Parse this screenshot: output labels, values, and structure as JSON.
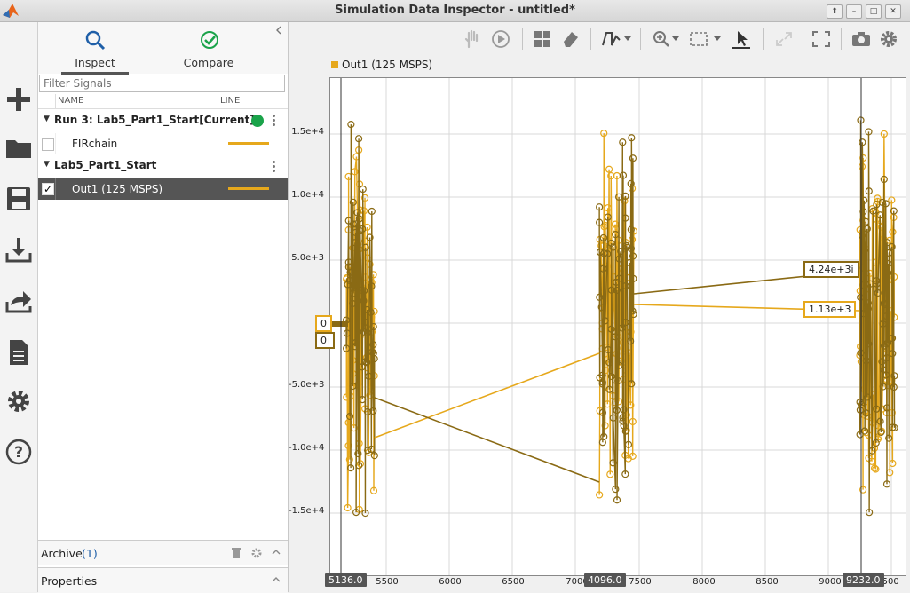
{
  "window": {
    "title": "Simulation Data Inspector - untitled*",
    "controls": [
      "up",
      "minimize",
      "maximize",
      "close"
    ]
  },
  "rail": {
    "items": [
      "plus-icon",
      "folder-icon",
      "save-icon",
      "download-icon",
      "share-icon",
      "document-icon",
      "gear-icon",
      "help-icon"
    ]
  },
  "panel": {
    "tabs": [
      {
        "label": "Inspect",
        "icon": "search-icon",
        "active": true
      },
      {
        "label": "Compare",
        "icon": "check-circle-icon",
        "active": false
      }
    ],
    "filter_placeholder": "Filter Signals",
    "columns": {
      "name": "NAME",
      "line": "LINE"
    },
    "runs": [
      {
        "label": "Run 3: Lab5_Part1_Start[Current]",
        "status_color": "#1aa34a",
        "signals": [
          {
            "name": "FIRchain",
            "checked": false,
            "line_color": "#e6a81c"
          }
        ]
      },
      {
        "label": "Lab5_Part1_Start",
        "signals": [
          {
            "name": "Out1 (125 MSPS)",
            "checked": true,
            "selected": true,
            "line_color": "#e6a81c"
          }
        ]
      }
    ],
    "archive": {
      "label": "Archive",
      "count": "1"
    },
    "properties": {
      "label": "Properties"
    }
  },
  "plot": {
    "legend": "Out1 (125 MSPS)",
    "series_colors": {
      "real": "#e6a81c",
      "imag": "#8a6a14"
    },
    "y_ticks": [
      "1.5e+4",
      "1.0e+4",
      "5.0e+3",
      "-5.0e+3",
      "-1.0e+4",
      "-1.5e+4"
    ],
    "x_ticks": [
      "5500",
      "6000",
      "6500",
      "7000",
      "7500",
      "8000",
      "8500",
      "9000",
      "9500"
    ],
    "cursors": [
      "5136.0",
      "4096.0",
      "9232.0"
    ],
    "datatips": {
      "left_real": "0",
      "left_imag": "0i",
      "right_imag": "4.24e+3i",
      "right_real": "1.13e+3"
    }
  }
}
